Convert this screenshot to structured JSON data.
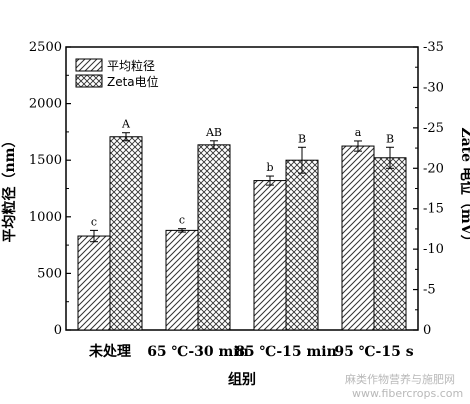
{
  "chart_data": {
    "type": "bar",
    "categories": [
      "未处理",
      "65 ℃-30 min",
      "85 ℃-15 min",
      "95 ℃-15 s"
    ],
    "xlabel": "组别",
    "ylabel": "平均粒径（nm）",
    "ylabel_right": "Zate 电位（mV）",
    "ylim": [
      0,
      2500
    ],
    "ylim_right": [
      0,
      -35
    ],
    "yticks": [
      "0",
      "500",
      "1000",
      "1500",
      "2000",
      "2500"
    ],
    "yticks_right": [
      "0",
      "-5",
      "-10",
      "-15",
      "-20",
      "-25",
      "-30",
      "-35"
    ],
    "legend_position": "top-left",
    "series": [
      {
        "name": "平均粒径",
        "axis": "left",
        "pattern": "diagonal-hatch",
        "values": [
          830,
          880,
          1320,
          1625
        ],
        "errors": [
          50,
          15,
          40,
          45
        ],
        "letters": [
          "c",
          "c",
          "b",
          "a"
        ]
      },
      {
        "name": "Zeta电位",
        "axis": "right",
        "pattern": "cross-hatch",
        "values": [
          -23.9,
          -22.9,
          -21.0,
          -21.3
        ],
        "errors": [
          0.5,
          0.5,
          1.6,
          1.3
        ],
        "letters": [
          "A",
          "AB",
          "B",
          "B"
        ]
      }
    ]
  },
  "watermark": "麻类作物营养与施肥网\nwww.fibercrops.com"
}
